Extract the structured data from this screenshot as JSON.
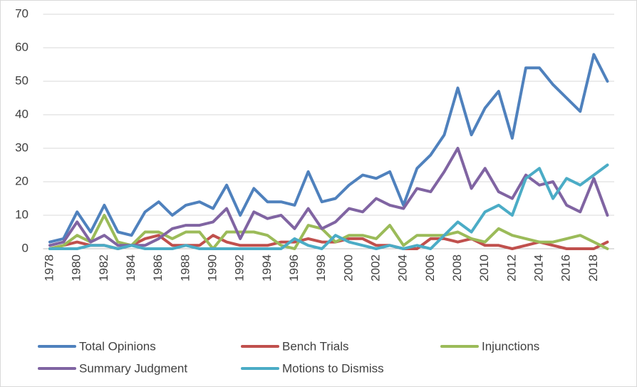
{
  "chart_data": {
    "type": "line",
    "categories": [
      "1978",
      null,
      "1980",
      null,
      "1982",
      null,
      "1984",
      null,
      "1986",
      null,
      "1988",
      null,
      "1990",
      null,
      "1992",
      null,
      "1994",
      null,
      "1996",
      null,
      "1998",
      null,
      "2000",
      null,
      "2002",
      null,
      "2004",
      null,
      "2006",
      null,
      "2008",
      null,
      "2010",
      null,
      "2012",
      null,
      "2014",
      null,
      "2016",
      null,
      "2018",
      null
    ],
    "series": [
      {
        "name": "Total Opinions",
        "color": "#4f81bd",
        "values": [
          2,
          3,
          11,
          5,
          13,
          5,
          4,
          11,
          14,
          10,
          13,
          14,
          12,
          19,
          10,
          18,
          14,
          14,
          13,
          23,
          14,
          15,
          19,
          22,
          21,
          23,
          13,
          24,
          28,
          34,
          48,
          34,
          42,
          47,
          33,
          54,
          54,
          49,
          45,
          41,
          58,
          50
        ]
      },
      {
        "name": "Bench Trials",
        "color": "#c0504d",
        "values": [
          0,
          1,
          2,
          1,
          1,
          0,
          1,
          3,
          4,
          1,
          1,
          1,
          4,
          2,
          1,
          1,
          1,
          2,
          2,
          3,
          2,
          2,
          3,
          3,
          1,
          1,
          0,
          0,
          3,
          3,
          2,
          3,
          1,
          1,
          0,
          1,
          2,
          1,
          0,
          0,
          0,
          2
        ]
      },
      {
        "name": "Injunctions",
        "color": "#9bbb59",
        "values": [
          0,
          1,
          4,
          2,
          10,
          2,
          1,
          5,
          5,
          3,
          5,
          5,
          0,
          5,
          5,
          5,
          4,
          1,
          0,
          7,
          6,
          2,
          4,
          4,
          3,
          7,
          1,
          4,
          4,
          4,
          5,
          3,
          2,
          6,
          4,
          3,
          2,
          2,
          3,
          4,
          2,
          0
        ]
      },
      {
        "name": "Summary Judgment",
        "color": "#8064a2",
        "values": [
          1,
          2,
          8,
          2,
          4,
          1,
          1,
          1,
          3,
          6,
          7,
          7,
          8,
          12,
          3,
          11,
          9,
          10,
          6,
          12,
          6,
          8,
          12,
          11,
          15,
          13,
          12,
          18,
          17,
          23,
          30,
          18,
          24,
          17,
          15,
          22,
          19,
          20,
          13,
          11,
          21,
          10
        ]
      },
      {
        "name": "Motions to Dismiss",
        "color": "#4bacc6",
        "values": [
          0,
          0,
          0,
          1,
          1,
          0,
          1,
          0,
          0,
          0,
          1,
          0,
          0,
          0,
          0,
          0,
          0,
          0,
          3,
          1,
          0,
          4,
          2,
          1,
          0,
          1,
          0,
          1,
          0,
          4,
          8,
          5,
          11,
          13,
          10,
          21,
          24,
          15,
          21,
          19,
          22,
          25
        ]
      }
    ],
    "ylim": [
      0,
      70
    ],
    "yticks": [
      0,
      10,
      20,
      30,
      40,
      50,
      60,
      70
    ],
    "grid": true,
    "legend": "bottom"
  }
}
